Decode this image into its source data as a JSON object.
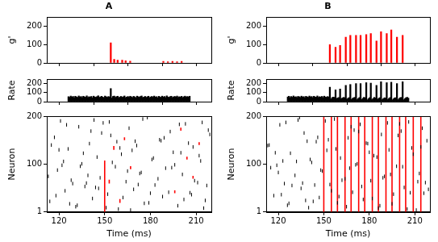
{
  "chart_data": [
    {
      "type": "bar",
      "title": "A",
      "y_label": "g'",
      "color": "#ff0000",
      "grid": false,
      "tick_labels": "y",
      "xlim": [
        112,
        220
      ],
      "xticks": [
        120,
        150,
        180,
        210
      ],
      "ylim": [
        0,
        250
      ],
      "yticks": [
        0,
        100,
        200
      ],
      "x": [
        150,
        153,
        156,
        160,
        163,
        167,
        196,
        200,
        204,
        208,
        212
      ],
      "values": [
        110,
        20,
        15,
        15,
        12,
        10,
        8,
        6,
        8,
        6,
        8
      ]
    },
    {
      "type": "bar",
      "y_label": "Rate",
      "color": "#000000",
      "grid": false,
      "tick_labels": "y",
      "xlim": [
        112,
        220
      ],
      "xticks": [
        120,
        150,
        180,
        210
      ],
      "ylim": [
        0,
        250
      ],
      "yticks": [
        0,
        100,
        200
      ],
      "x": [
        113,
        114,
        115,
        116,
        117,
        118,
        119,
        120,
        121,
        122,
        123,
        124,
        125,
        126,
        127,
        128,
        129,
        130,
        131,
        132,
        133,
        134,
        135,
        136,
        137,
        138,
        139,
        140,
        141,
        142,
        143,
        144,
        145,
        146,
        147,
        148,
        149,
        150,
        151,
        152,
        153,
        154,
        155,
        156,
        157,
        158,
        159,
        160,
        161,
        162,
        163,
        164,
        165,
        166,
        167,
        168,
        169,
        170,
        171,
        172,
        173,
        174,
        175,
        176,
        177,
        178,
        179,
        180,
        181,
        182,
        183,
        184,
        185,
        186,
        187,
        188,
        189,
        190,
        191,
        192,
        193,
        194,
        195,
        196,
        197,
        198,
        199,
        200,
        201,
        202,
        203,
        204,
        205,
        206,
        207,
        208,
        209,
        210,
        211,
        212,
        213,
        214,
        215,
        216,
        217,
        218,
        219
      ],
      "values": [
        55,
        48,
        62,
        50,
        58,
        44,
        60,
        52,
        47,
        63,
        51,
        57,
        45,
        60,
        53,
        49,
        64,
        46,
        55,
        50,
        58,
        43,
        61,
        52,
        48,
        56,
        65,
        47,
        53,
        59,
        50,
        45,
        62,
        54,
        48,
        57,
        51,
        145,
        40,
        58,
        62,
        47,
        55,
        60,
        44,
        52,
        58,
        49,
        54,
        63,
        45,
        51,
        57,
        48,
        60,
        53,
        46,
        59,
        52,
        44,
        61,
        55,
        49,
        57,
        63,
        46,
        50,
        58,
        47,
        54,
        60,
        45,
        52,
        58,
        49,
        62,
        51,
        55,
        44,
        59,
        53,
        48,
        61,
        50,
        57,
        46,
        64,
        52,
        48,
        56,
        60,
        45,
        53,
        58,
        50,
        62,
        47,
        55,
        51,
        59,
        46,
        54,
        61,
        49,
        57,
        52,
        60
      ]
    },
    {
      "type": "scatter",
      "x_label": "Time (ms)",
      "y_label": "Neuron",
      "grid": false,
      "xlim": [
        112,
        220
      ],
      "xticks": [
        120,
        150,
        180,
        210
      ],
      "ylim": [
        1,
        200
      ],
      "yticks": [
        1,
        100,
        200
      ],
      "series": [
        {
          "color": "#000000",
          "marker": "line",
          "x": [
            114,
            117,
            119,
            121,
            124,
            126,
            128,
            131,
            133,
            135,
            137,
            140,
            142,
            145,
            147,
            149,
            152,
            154,
            157,
            159,
            161,
            164,
            166,
            169,
            171,
            174,
            176,
            178,
            181,
            183,
            186,
            188,
            190,
            193,
            195,
            198,
            201,
            203,
            206,
            208,
            211,
            213,
            216,
            218,
            115,
            118,
            122,
            125,
            129,
            132,
            136,
            139,
            143,
            146,
            148,
            151,
            155,
            158,
            162,
            165,
            168,
            172,
            175,
            179,
            182,
            185,
            189,
            192,
            196,
            199,
            202,
            205,
            209,
            212,
            215,
            219,
            113,
            120,
            127,
            134,
            141,
            144,
            153,
            160,
            167,
            173,
            180,
            187,
            194,
            200,
            207,
            214,
            217,
            123,
            138,
            170
          ],
          "y": [
            23,
            156,
            88,
            190,
            45,
            132,
            67,
            12,
            178,
            101,
            54,
            143,
            29,
            115,
            72,
            186,
            38,
            160,
            95,
            7,
            121,
            64,
            175,
            48,
            139,
            83,
            19,
            197,
            110,
            57,
            151,
            33,
            92,
            168,
            125,
            14,
            79,
            184,
            41,
            136,
            62,
            107,
            25,
            171,
            140,
            35,
            98,
            182,
            60,
            15,
            123,
            77,
            192,
            50,
            165,
            10,
            104,
            147,
            31,
            86,
            129,
            58,
            194,
            20,
            113,
            70,
            155,
            42,
            99,
            183,
            27,
            144,
            66,
            118,
            9,
            162,
            75,
            130,
            18,
            96,
            169,
            52,
            188,
            134,
            5,
            81,
            40,
            149,
            93,
            124,
            37,
            187,
            56,
            106,
            61,
            148
          ]
        }
      ],
      "events": {
        "color": "#ff0000",
        "line_style": "solid",
        "x": [
          150,
          153,
          156,
          160,
          163,
          167,
          196,
          200,
          204,
          208,
          212
        ],
        "y_from": [
          1,
          60,
          130,
          20,
          150,
          90,
          40,
          170,
          110,
          70,
          140
        ],
        "y_to": [
          108,
          68,
          138,
          28,
          156,
          96,
          46,
          176,
          116,
          76,
          146
        ]
      }
    },
    {
      "type": "bar",
      "title": "B",
      "y_label": "g'",
      "color": "#ff0000",
      "grid": false,
      "tick_labels": "y",
      "xlim": [
        112,
        220
      ],
      "xticks": [
        120,
        150,
        180,
        210
      ],
      "ylim": [
        0,
        250
      ],
      "yticks": [
        0,
        100,
        200
      ],
      "x": [
        150,
        155,
        159,
        164,
        168,
        173,
        177,
        182,
        186,
        191,
        195,
        200,
        204,
        209,
        214
      ],
      "values": [
        100,
        85,
        95,
        140,
        150,
        150,
        150,
        155,
        160,
        120,
        170,
        160,
        180,
        140,
        150
      ]
    },
    {
      "type": "bar",
      "y_label": "Rate",
      "color": "#000000",
      "grid": false,
      "tick_labels": "y",
      "xlim": [
        112,
        220
      ],
      "xticks": [
        120,
        150,
        180,
        210
      ],
      "ylim": [
        0,
        250
      ],
      "yticks": [
        0,
        100,
        200
      ],
      "x": [
        113,
        114,
        115,
        116,
        117,
        118,
        119,
        120,
        121,
        122,
        123,
        124,
        125,
        126,
        127,
        128,
        129,
        130,
        131,
        132,
        133,
        134,
        135,
        136,
        137,
        138,
        139,
        140,
        141,
        142,
        143,
        144,
        145,
        146,
        147,
        148,
        149,
        150,
        151,
        152,
        153,
        154,
        155,
        156,
        157,
        158,
        159,
        160,
        161,
        162,
        163,
        164,
        165,
        166,
        167,
        168,
        169,
        170,
        171,
        172,
        173,
        174,
        175,
        176,
        177,
        178,
        179,
        180,
        181,
        182,
        183,
        184,
        185,
        186,
        187,
        188,
        189,
        190,
        191,
        192,
        193,
        194,
        195,
        196,
        197,
        198,
        199,
        200,
        201,
        202,
        203,
        204,
        205,
        206,
        207,
        208,
        209,
        210,
        211,
        212,
        213,
        214,
        215,
        216,
        217,
        218,
        219
      ],
      "values": [
        52,
        60,
        45,
        57,
        49,
        63,
        50,
        55,
        46,
        58,
        54,
        47,
        61,
        50,
        56,
        44,
        59,
        53,
        48,
        62,
        51,
        57,
        45,
        60,
        52,
        49,
        63,
        47,
        55,
        50,
        58,
        46,
        61,
        53,
        49,
        56,
        52,
        160,
        30,
        45,
        50,
        48,
        130,
        35,
        42,
        46,
        140,
        32,
        40,
        47,
        44,
        180,
        28,
        38,
        45,
        190,
        25,
        36,
        44,
        47,
        200,
        22,
        35,
        46,
        200,
        24,
        37,
        48,
        43,
        210,
        20,
        33,
        45,
        205,
        22,
        34,
        47,
        41,
        180,
        26,
        38,
        44,
        220,
        21,
        32,
        43,
        40,
        210,
        23,
        36,
        46,
        215,
        20,
        31,
        42,
        44,
        200,
        22,
        35,
        45,
        47,
        220,
        21,
        33,
        44,
        48,
        39
      ]
    },
    {
      "type": "scatter",
      "x_label": "Time (ms)",
      "y_label": "Neuron",
      "grid": false,
      "xlim": [
        112,
        220
      ],
      "xticks": [
        120,
        150,
        180,
        210
      ],
      "ylim": [
        1,
        200
      ],
      "yticks": [
        1,
        100,
        200
      ],
      "series": [
        {
          "color": "#000000",
          "marker": "line",
          "x": [
            114,
            117,
            119,
            121,
            124,
            126,
            128,
            131,
            133,
            135,
            137,
            140,
            142,
            145,
            147,
            149,
            152,
            154,
            157,
            159,
            161,
            164,
            166,
            169,
            171,
            174,
            176,
            178,
            181,
            183,
            186,
            188,
            190,
            193,
            195,
            198,
            201,
            203,
            206,
            208,
            211,
            213,
            216,
            218,
            115,
            118,
            122,
            125,
            129,
            132,
            136,
            139,
            143,
            146,
            148,
            151,
            155,
            158,
            162,
            165,
            168,
            172,
            175,
            179,
            182,
            185,
            189,
            192,
            196,
            199,
            202,
            205,
            209,
            212,
            215,
            219,
            113,
            120,
            127,
            134,
            141,
            144,
            153,
            160,
            167,
            173,
            180,
            187,
            194,
            200,
            207,
            214,
            217,
            123,
            138,
            170
          ],
          "y": [
            140,
            35,
            98,
            182,
            60,
            15,
            123,
            77,
            192,
            50,
            165,
            10,
            104,
            147,
            31,
            86,
            129,
            58,
            194,
            20,
            113,
            70,
            155,
            42,
            99,
            183,
            27,
            144,
            66,
            118,
            9,
            162,
            75,
            130,
            18,
            96,
            169,
            52,
            188,
            134,
            5,
            81,
            40,
            149,
            93,
            124,
            37,
            187,
            56,
            106,
            61,
            148,
            23,
            156,
            88,
            190,
            45,
            132,
            67,
            12,
            178,
            101,
            54,
            143,
            29,
            115,
            72,
            186,
            38,
            160,
            95,
            7,
            121,
            64,
            175,
            48,
            139,
            83,
            19,
            197,
            110,
            57,
            151,
            33,
            92,
            168,
            125,
            14,
            79,
            184,
            41,
            136,
            62,
            107,
            25,
            171
          ]
        }
      ],
      "events": {
        "color": "#ff0000",
        "line_style": "solid",
        "x": [
          150,
          155,
          159,
          164,
          168,
          173,
          177,
          182,
          186,
          191,
          195,
          200,
          204,
          209,
          214
        ],
        "y_from": [
          1,
          1,
          1,
          1,
          1,
          1,
          1,
          1,
          1,
          1,
          1,
          1,
          1,
          1,
          1
        ],
        "y_to": [
          200,
          200,
          200,
          200,
          200,
          200,
          200,
          200,
          200,
          200,
          200,
          200,
          200,
          200,
          200
        ]
      }
    }
  ]
}
